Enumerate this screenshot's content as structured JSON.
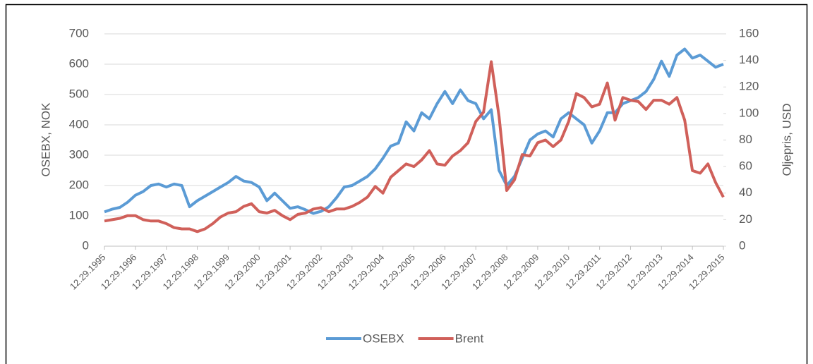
{
  "chart_data": {
    "type": "line",
    "y_label": "OSEBX, NOK",
    "y2_label": "Oljepris, USD",
    "categories": [
      "12.29.1995",
      null,
      null,
      null,
      "12.29.1996",
      null,
      null,
      null,
      "12.29.1997",
      null,
      null,
      null,
      "12.29.1998",
      null,
      null,
      null,
      "12.29.1999",
      null,
      null,
      null,
      "12.29.2000",
      null,
      null,
      null,
      "12.29.2001",
      null,
      null,
      null,
      "12.29.2002",
      null,
      null,
      null,
      "12.29.2003",
      null,
      null,
      null,
      "12.29.2004",
      null,
      null,
      null,
      "12.29.2005",
      null,
      null,
      null,
      "12.29.2006",
      null,
      null,
      null,
      "12.29.2007",
      null,
      null,
      null,
      "12.29.2008",
      null,
      null,
      null,
      "12.29.2009",
      null,
      null,
      null,
      "12.29.2010",
      null,
      null,
      null,
      "12.29.2011",
      null,
      null,
      null,
      "12.29.2012",
      null,
      null,
      null,
      "12.29.2013",
      null,
      null,
      null,
      "12.29.2014",
      null,
      null,
      null,
      "12.29.2015"
    ],
    "series": [
      {
        "name": "OSEBX",
        "color": "#5b9bd5",
        "axis": "y",
        "values": [
          113,
          122,
          128,
          145,
          168,
          180,
          200,
          205,
          195,
          205,
          200,
          130,
          150,
          165,
          180,
          195,
          210,
          230,
          215,
          210,
          195,
          150,
          175,
          150,
          125,
          130,
          120,
          108,
          115,
          130,
          160,
          195,
          200,
          215,
          230,
          255,
          290,
          330,
          340,
          410,
          380,
          440,
          420,
          470,
          510,
          470,
          515,
          480,
          470,
          420,
          450,
          250,
          200,
          230,
          290,
          350,
          370,
          380,
          360,
          420,
          440,
          420,
          400,
          340,
          380,
          440,
          440,
          470,
          480,
          490,
          510,
          550,
          610,
          560,
          630,
          650,
          620,
          630,
          610,
          590,
          600
        ]
      },
      {
        "name": "Brent",
        "color": "#d0605a",
        "axis": "y2",
        "values": [
          19,
          20,
          21,
          23,
          23,
          20,
          19,
          19,
          17,
          14,
          13,
          13,
          11,
          13,
          17,
          22,
          25,
          26,
          30,
          32,
          26,
          25,
          27,
          23,
          20,
          24,
          25,
          28,
          29,
          26,
          28,
          28,
          30,
          33,
          37,
          45,
          40,
          52,
          57,
          62,
          60,
          65,
          72,
          62,
          61,
          68,
          72,
          78,
          94,
          101,
          139,
          98,
          42,
          50,
          69,
          68,
          78,
          80,
          75,
          80,
          94,
          115,
          112,
          105,
          107,
          123,
          95,
          112,
          110,
          109,
          103,
          110,
          110,
          107,
          112,
          95,
          57,
          55,
          62,
          48,
          37
        ]
      }
    ],
    "ylim": [
      0,
      700
    ],
    "yticks": [
      0,
      100,
      200,
      300,
      400,
      500,
      600,
      700
    ],
    "y2lim": [
      0,
      160
    ],
    "y2ticks": [
      0,
      20,
      40,
      60,
      80,
      100,
      120,
      140,
      160
    ],
    "grid": true,
    "legend": "bottom"
  }
}
